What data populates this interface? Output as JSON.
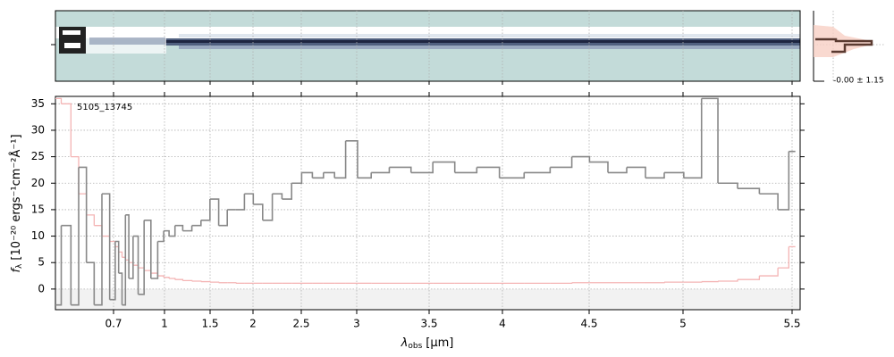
{
  "chart_data": {
    "type": "step",
    "annotation": "5105_13745",
    "profile_label": "-0.00 ± 1.15",
    "xlabel": {
      "symbol": "λ",
      "subscript": "obs",
      "unit": "[μm]"
    },
    "ylabel": {
      "symbol": "f",
      "subscript": "λ",
      "unit": "[10⁻²⁰ ergs⁻¹cm⁻²Å⁻¹]"
    },
    "xlim": [
      0.55,
      5.53
    ],
    "xticks": [
      0.7,
      1.0,
      1.5,
      2.0,
      2.5,
      3.0,
      3.5,
      4.0,
      4.5,
      5.0,
      5.5
    ],
    "ylim": [
      -3.9,
      36.4
    ],
    "yticks": [
      0,
      5,
      10,
      15,
      20,
      25,
      30,
      35
    ],
    "grid": true,
    "x": [
      0.55,
      0.58,
      0.6,
      0.62,
      0.64,
      0.66,
      0.68,
      0.7,
      0.72,
      0.74,
      0.76,
      0.78,
      0.8,
      0.83,
      0.86,
      0.9,
      0.94,
      0.98,
      1.02,
      1.08,
      1.15,
      1.25,
      1.35,
      1.45,
      1.55,
      1.65,
      1.75,
      1.85,
      1.95,
      2.05,
      2.15,
      2.25,
      2.35,
      2.45,
      2.55,
      2.65,
      2.75,
      2.85,
      2.95,
      3.05,
      3.15,
      3.3,
      3.45,
      3.6,
      3.75,
      3.9,
      4.05,
      4.2,
      4.35,
      4.45,
      4.55,
      4.65,
      4.75,
      4.85,
      4.95,
      5.05,
      5.12,
      5.2,
      5.3,
      5.4,
      5.47,
      5.5
    ],
    "series": [
      {
        "name": "flux",
        "color": "#888888",
        "values": [
          -3,
          12,
          -3,
          23,
          5,
          -3,
          18,
          -2,
          9,
          3,
          -3,
          14,
          2,
          10,
          -1,
          13,
          2,
          9,
          11,
          10,
          12,
          11,
          12,
          13,
          17,
          12,
          15,
          15,
          18,
          16,
          13,
          18,
          17,
          20,
          22,
          21,
          22,
          21,
          28,
          21,
          22,
          23,
          22,
          24,
          22,
          23,
          21,
          22,
          23,
          25,
          24,
          22,
          23,
          21,
          22,
          21,
          36,
          20,
          19,
          18,
          15,
          26
        ]
      },
      {
        "name": "error",
        "color": "#f4b4b4",
        "values": [
          36,
          35,
          25,
          18,
          14,
          12,
          10,
          9,
          8,
          7,
          6,
          5.5,
          5,
          4.5,
          4,
          3.5,
          3,
          2.5,
          2.2,
          2,
          1.8,
          1.6,
          1.5,
          1.4,
          1.3,
          1.2,
          1.2,
          1.1,
          1.1,
          1.1,
          1.1,
          1.1,
          1.1,
          1.1,
          1.1,
          1.1,
          1.1,
          1.1,
          1.1,
          1.1,
          1.1,
          1.1,
          1.1,
          1.1,
          1.1,
          1.1,
          1.1,
          1.1,
          1.1,
          1.2,
          1.2,
          1.2,
          1.2,
          1.2,
          1.3,
          1.3,
          1.4,
          1.5,
          1.8,
          2.5,
          4,
          8
        ]
      }
    ]
  }
}
